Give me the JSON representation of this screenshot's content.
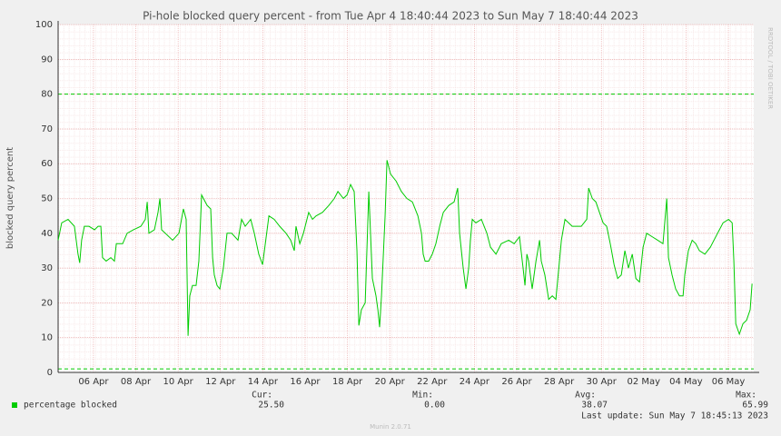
{
  "chart_data": {
    "type": "line",
    "title": "Pi-hole blocked query percent - from Tue Apr  4 18:40:44 2023 to Sun May  7 18:40:44 2023",
    "y_label": "blocked query percent",
    "side_label": "RRDTOOL / TOBI OETIKER",
    "footer": "Munin 2.0.71",
    "last_update": "Last update: Sun May  7 18:45:13 2023",
    "xlim": [
      0.33,
      33.2
    ],
    "xticks": [
      {
        "value": 2,
        "label": "06 Apr"
      },
      {
        "value": 4,
        "label": "08 Apr"
      },
      {
        "value": 6,
        "label": "10 Apr"
      },
      {
        "value": 8,
        "label": "12 Apr"
      },
      {
        "value": 10,
        "label": "14 Apr"
      },
      {
        "value": 12,
        "label": "16 Apr"
      },
      {
        "value": 14,
        "label": "18 Apr"
      },
      {
        "value": 16,
        "label": "20 Apr"
      },
      {
        "value": 18,
        "label": "22 Apr"
      },
      {
        "value": 20,
        "label": "24 Apr"
      },
      {
        "value": 22,
        "label": "26 Apr"
      },
      {
        "value": 24,
        "label": "28 Apr"
      },
      {
        "value": 26,
        "label": "30 Apr"
      },
      {
        "value": 28,
        "label": "02 May"
      },
      {
        "value": 30,
        "label": "04 May"
      },
      {
        "value": 32,
        "label": "06 May"
      }
    ],
    "ylim": [
      0,
      100
    ],
    "yticks": [
      0,
      10,
      20,
      30,
      40,
      50,
      60,
      70,
      80,
      90,
      100
    ],
    "grid": true,
    "reference_lines": [
      80,
      1
    ],
    "reference_color": "#00cc00",
    "x": [
      0.33,
      0.5,
      0.8,
      1.1,
      1.27,
      1.35,
      1.44,
      1.57,
      1.79,
      2.05,
      2.22,
      2.35,
      2.43,
      2.6,
      2.82,
      2.99,
      3.08,
      3.38,
      3.59,
      3.89,
      4.24,
      4.45,
      4.54,
      4.62,
      4.88,
      5.05,
      5.14,
      5.22,
      5.74,
      6.04,
      6.25,
      6.38,
      6.47,
      6.55,
      6.68,
      6.85,
      6.98,
      7.11,
      7.37,
      7.54,
      7.63,
      7.71,
      7.84,
      7.97,
      8.14,
      8.31,
      8.53,
      8.83,
      9.0,
      9.17,
      9.43,
      9.6,
      9.81,
      9.99,
      10.12,
      10.29,
      10.54,
      10.8,
      11.1,
      11.32,
      11.49,
      11.57,
      11.75,
      11.92,
      12.17,
      12.35,
      12.52,
      12.82,
      13.12,
      13.38,
      13.55,
      13.81,
      13.98,
      14.15,
      14.32,
      14.45,
      14.54,
      14.66,
      14.84,
      15.01,
      15.18,
      15.35,
      15.44,
      15.52,
      15.61,
      15.78,
      15.87,
      16.04,
      16.3,
      16.55,
      16.81,
      17.07,
      17.33,
      17.5,
      17.58,
      17.67,
      17.84,
      18.01,
      18.18,
      18.36,
      18.53,
      18.79,
      19.04,
      19.21,
      19.3,
      19.47,
      19.6,
      19.73,
      19.81,
      19.9,
      20.07,
      20.33,
      20.59,
      20.76,
      21.02,
      21.27,
      21.62,
      21.88,
      22.13,
      22.3,
      22.39,
      22.48,
      22.56,
      22.73,
      22.91,
      23.08,
      23.16,
      23.33,
      23.51,
      23.68,
      23.85,
      24.11,
      24.28,
      24.62,
      25.05,
      25.31,
      25.4,
      25.57,
      25.74,
      25.91,
      26.08,
      26.25,
      26.42,
      26.6,
      26.77,
      26.94,
      27.11,
      27.28,
      27.46,
      27.63,
      27.8,
      27.97,
      28.14,
      28.4,
      28.66,
      28.91,
      29.09,
      29.17,
      29.34,
      29.51,
      29.69,
      29.86,
      29.94,
      30.11,
      30.29,
      30.46,
      30.63,
      30.89,
      31.15,
      31.49,
      31.75,
      32.01,
      32.18,
      32.26,
      32.35,
      32.52,
      32.69,
      32.86,
      33.03,
      33.12
    ],
    "series": [
      {
        "name": "percentage blocked",
        "color": "#00cc00",
        "values": [
          38,
          43,
          44,
          42,
          34,
          31.5,
          38,
          42,
          42,
          41,
          42,
          42,
          33,
          32,
          33,
          32,
          37,
          37,
          40,
          41,
          42,
          44,
          49,
          40,
          41,
          46,
          50,
          41,
          38,
          40,
          47,
          44,
          10.5,
          22,
          25,
          25,
          32,
          51,
          48,
          47,
          33,
          28,
          25,
          24,
          30,
          40,
          40,
          38,
          44,
          42,
          44,
          40,
          34,
          31,
          37,
          45,
          44,
          42,
          40,
          38,
          35,
          42,
          37,
          40,
          46,
          44,
          45,
          46,
          48,
          50,
          52,
          50,
          51,
          54,
          52,
          35,
          13.5,
          18,
          20,
          52,
          27,
          22,
          18,
          13,
          22,
          45,
          61,
          57,
          55,
          52,
          50,
          49,
          45,
          40,
          34,
          32,
          32,
          34,
          37,
          42,
          46,
          48,
          49,
          53,
          40,
          30,
          24,
          30,
          38,
          44,
          43,
          44,
          40,
          36,
          34,
          37,
          38,
          37,
          39,
          30,
          25,
          34,
          32,
          24,
          32,
          38,
          32,
          28,
          21,
          22,
          21,
          38,
          44,
          42,
          42,
          44,
          53,
          50,
          49,
          46,
          43,
          42,
          37,
          31,
          27,
          28,
          35,
          30,
          34,
          27,
          26,
          36,
          40,
          39,
          38,
          37,
          50,
          33,
          28,
          24,
          22,
          22,
          28,
          35,
          38,
          37,
          35,
          34,
          36,
          40,
          43,
          44,
          43,
          32,
          14,
          11,
          14,
          15,
          18,
          25.5
        ]
      }
    ],
    "legend_stats": [
      {
        "label": "Cur:",
        "value": "25.50"
      },
      {
        "label": "Min:",
        "value": "0.00"
      },
      {
        "label": "Avg:",
        "value": "38.07"
      },
      {
        "label": "Max:",
        "value": "65.99"
      }
    ]
  }
}
